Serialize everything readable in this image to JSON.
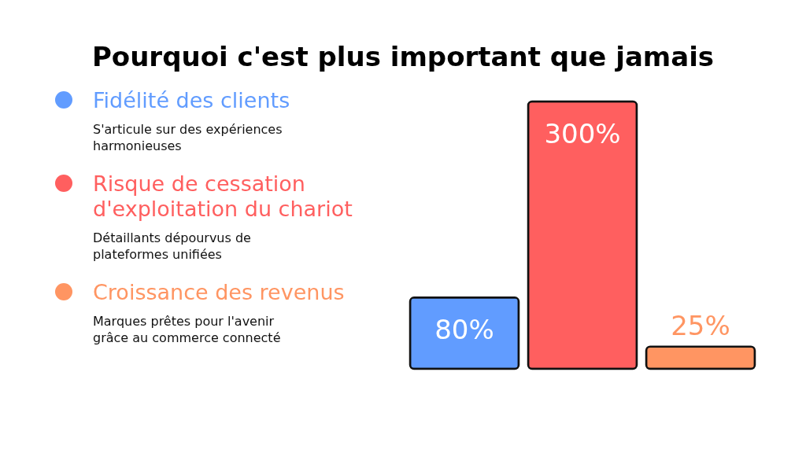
{
  "chart_data": {
    "type": "bar",
    "title": "Pourquoi c'est plus important que jamais",
    "categories": [
      null,
      null,
      null
    ],
    "legend": "left",
    "stacked": true,
    "series": [
      {
        "name": "Fidélité des clients",
        "color": "#619cff",
        "values": [
          80,
          null,
          null
        ],
        "value_labels": [
          "80%",
          null,
          null
        ]
      },
      {
        "name": "Risque de cessation d'exploitation du chariot",
        "color": "#ff5f5f",
        "values": [
          null,
          300,
          null
        ],
        "value_labels": [
          null,
          "300%",
          null
        ]
      },
      {
        "name": "Croissance des revenus",
        "color": "#ff9562",
        "values": [
          null,
          null,
          25
        ],
        "value_labels": [
          null,
          null,
          "25%"
        ]
      }
    ],
    "annotations": [
      "S'articule sur des expériences harmonieuses",
      "Détaillants dépourvus de plateformes unifiées",
      "Marques prêtes pour l'avenir grâce au commerce connecté"
    ]
  }
}
